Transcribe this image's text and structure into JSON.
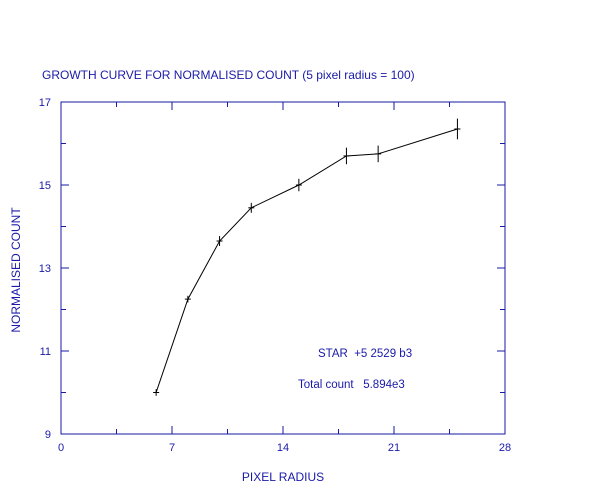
{
  "chart_data": {
    "type": "line",
    "title": "GROWTH CURVE FOR NORMALISED COUNT (5 pixel radius = 100)",
    "xlabel": "PIXEL RADIUS",
    "ylabel": "NORMALISED COUNT",
    "xlim": [
      0,
      28
    ],
    "ylim": [
      9,
      17
    ],
    "x_ticks": [
      0,
      7,
      14,
      21,
      28
    ],
    "x_tick_labels": [
      "0",
      "7",
      "14",
      "21",
      "28"
    ],
    "y_ticks": [
      9,
      11,
      13,
      15,
      17
    ],
    "y_tick_labels": [
      "9",
      "11",
      "13",
      "15",
      "17"
    ],
    "series": [
      {
        "x": [
          6,
          8,
          10,
          12,
          15,
          18,
          20,
          25
        ],
        "y": [
          10.0,
          12.25,
          13.65,
          14.45,
          15.0,
          15.7,
          15.75,
          16.35
        ],
        "err": [
          0.08,
          0.08,
          0.12,
          0.12,
          0.15,
          0.2,
          0.2,
          0.25
        ]
      }
    ],
    "annotations": [
      {
        "text": "STAR  +5 2529 b3"
      },
      {
        "text": "Total count   5.894e3"
      }
    ],
    "grid": false,
    "colors": {
      "axes": "#1a1aa8",
      "line": "#000000",
      "text": "#1a1aa8"
    }
  }
}
